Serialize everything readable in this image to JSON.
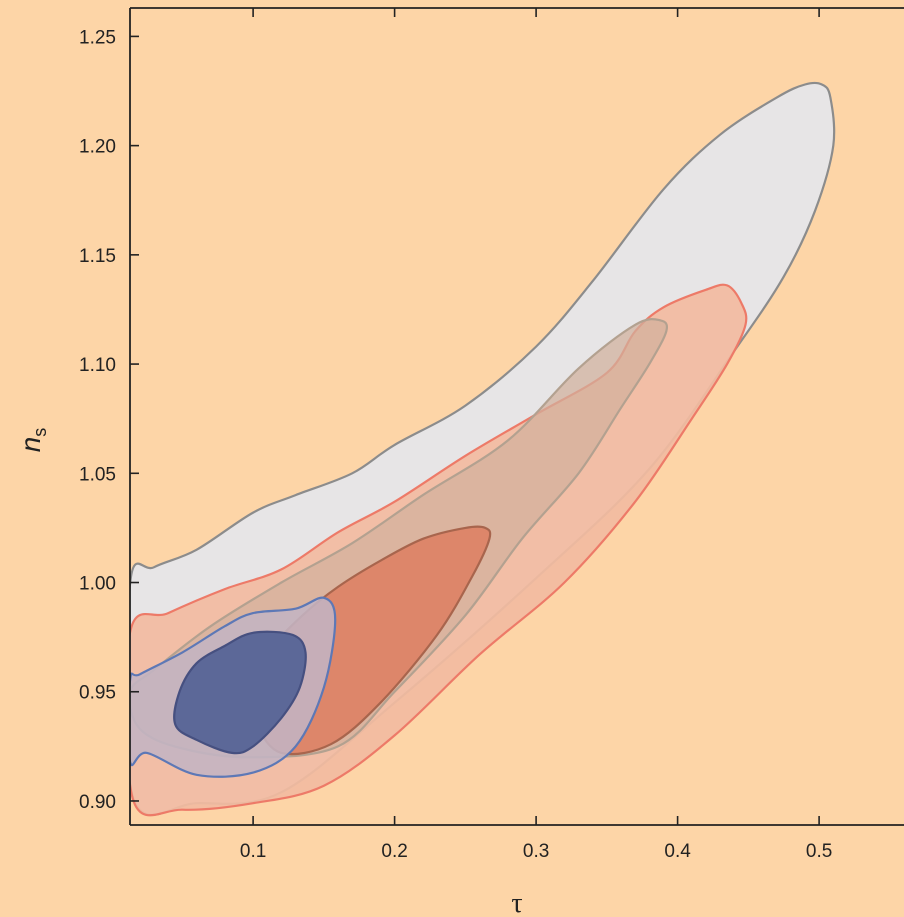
{
  "chart_data": {
    "type": "contour",
    "xlabel": "τ",
    "ylabel": "n",
    "ylabel_subscript": "s",
    "xlim": [
      0.013,
      0.56
    ],
    "ylim": [
      0.889,
      1.263
    ],
    "xticks": [
      0.1,
      0.2,
      0.3,
      0.4,
      0.5
    ],
    "xtick_labels": [
      "0.1",
      "0.2",
      "0.3",
      "0.4",
      "0.5"
    ],
    "yticks": [
      0.9,
      0.95,
      1.0,
      1.05,
      1.1,
      1.15,
      1.2,
      1.25
    ],
    "ytick_labels": [
      "0.90",
      "0.95",
      "1.00",
      "1.05",
      "1.10",
      "1.15",
      "1.20",
      "1.25"
    ],
    "series": [
      {
        "color_fill": "#e7e5e6",
        "color_line": "#8c8c8c",
        "opacity": 1.0,
        "points": [
          [
            0.015,
            0.902
          ],
          [
            0.06,
            0.899
          ],
          [
            0.12,
            0.904
          ],
          [
            0.2,
            0.945
          ],
          [
            0.3,
            1.002
          ],
          [
            0.38,
            1.052
          ],
          [
            0.44,
            1.106
          ],
          [
            0.475,
            1.14
          ],
          [
            0.497,
            1.17
          ],
          [
            0.51,
            1.2
          ],
          [
            0.508,
            1.222
          ],
          [
            0.502,
            1.228
          ],
          [
            0.49,
            1.228
          ],
          [
            0.47,
            1.222
          ],
          [
            0.43,
            1.205
          ],
          [
            0.39,
            1.18
          ],
          [
            0.34,
            1.138
          ],
          [
            0.3,
            1.108
          ],
          [
            0.25,
            1.081
          ],
          [
            0.2,
            1.063
          ],
          [
            0.17,
            1.05
          ],
          [
            0.13,
            1.04
          ],
          [
            0.1,
            1.032
          ],
          [
            0.06,
            1.015
          ],
          [
            0.03,
            1.007
          ],
          [
            0.013,
            0.999
          ]
        ]
      },
      {
        "color_fill": "#f2bba0",
        "color_line": "#ed7a68",
        "opacity": 0.93,
        "points": [
          [
            0.015,
            0.901
          ],
          [
            0.05,
            0.896
          ],
          [
            0.1,
            0.899
          ],
          [
            0.15,
            0.907
          ],
          [
            0.2,
            0.93
          ],
          [
            0.26,
            0.967
          ],
          [
            0.32,
            1.0
          ],
          [
            0.37,
            1.037
          ],
          [
            0.41,
            1.075
          ],
          [
            0.435,
            1.1
          ],
          [
            0.448,
            1.118
          ],
          [
            0.445,
            1.128
          ],
          [
            0.435,
            1.136
          ],
          [
            0.42,
            1.134
          ],
          [
            0.39,
            1.126
          ],
          [
            0.37,
            1.115
          ],
          [
            0.35,
            1.096
          ],
          [
            0.3,
            1.077
          ],
          [
            0.25,
            1.058
          ],
          [
            0.2,
            1.037
          ],
          [
            0.16,
            1.023
          ],
          [
            0.12,
            1.006
          ],
          [
            0.08,
            0.997
          ],
          [
            0.04,
            0.986
          ],
          [
            0.013,
            0.977
          ]
        ]
      },
      {
        "color_fill": "#d1b09d",
        "color_line": "#b3a190",
        "opacity": 0.72,
        "points": [
          [
            0.02,
            0.933
          ],
          [
            0.05,
            0.924
          ],
          [
            0.1,
            0.92
          ],
          [
            0.16,
            0.925
          ],
          [
            0.2,
            0.95
          ],
          [
            0.25,
            0.985
          ],
          [
            0.29,
            1.02
          ],
          [
            0.33,
            1.05
          ],
          [
            0.36,
            1.08
          ],
          [
            0.38,
            1.1
          ],
          [
            0.392,
            1.115
          ],
          [
            0.388,
            1.12
          ],
          [
            0.37,
            1.118
          ],
          [
            0.33,
            1.098
          ],
          [
            0.28,
            1.065
          ],
          [
            0.22,
            1.04
          ],
          [
            0.17,
            1.018
          ],
          [
            0.12,
            1.0
          ],
          [
            0.07,
            0.98
          ],
          [
            0.03,
            0.96
          ],
          [
            0.013,
            0.95
          ]
        ]
      },
      {
        "color_fill": "#dd8467",
        "color_line": "#a8654d",
        "opacity": 0.95,
        "points": [
          [
            0.12,
            0.922
          ],
          [
            0.155,
            0.926
          ],
          [
            0.19,
            0.945
          ],
          [
            0.23,
            0.976
          ],
          [
            0.255,
            1.003
          ],
          [
            0.267,
            1.02
          ],
          [
            0.264,
            1.025
          ],
          [
            0.25,
            1.025
          ],
          [
            0.22,
            1.02
          ],
          [
            0.19,
            1.01
          ],
          [
            0.16,
            0.998
          ],
          [
            0.135,
            0.985
          ],
          [
            0.11,
            0.968
          ],
          [
            0.1,
            0.953
          ],
          [
            0.103,
            0.935
          ]
        ]
      },
      {
        "color_fill": "#c3b4c3",
        "color_line": "#5d78b6",
        "opacity": 0.88,
        "points": [
          [
            0.013,
            0.918
          ],
          [
            0.025,
            0.922
          ],
          [
            0.06,
            0.912
          ],
          [
            0.1,
            0.913
          ],
          [
            0.13,
            0.925
          ],
          [
            0.15,
            0.952
          ],
          [
            0.158,
            0.983
          ],
          [
            0.15,
            0.993
          ],
          [
            0.13,
            0.988
          ],
          [
            0.1,
            0.986
          ],
          [
            0.08,
            0.98
          ],
          [
            0.05,
            0.968
          ],
          [
            0.02,
            0.958
          ],
          [
            0.013,
            0.955
          ]
        ]
      },
      {
        "color_fill": "#5c6898",
        "color_line": "#465080",
        "opacity": 1.0,
        "points": [
          [
            0.045,
            0.935
          ],
          [
            0.06,
            0.928
          ],
          [
            0.085,
            0.922
          ],
          [
            0.1,
            0.925
          ],
          [
            0.12,
            0.938
          ],
          [
            0.133,
            0.952
          ],
          [
            0.137,
            0.968
          ],
          [
            0.128,
            0.976
          ],
          [
            0.1,
            0.977
          ],
          [
            0.08,
            0.971
          ],
          [
            0.06,
            0.963
          ],
          [
            0.048,
            0.95
          ]
        ]
      }
    ]
  }
}
